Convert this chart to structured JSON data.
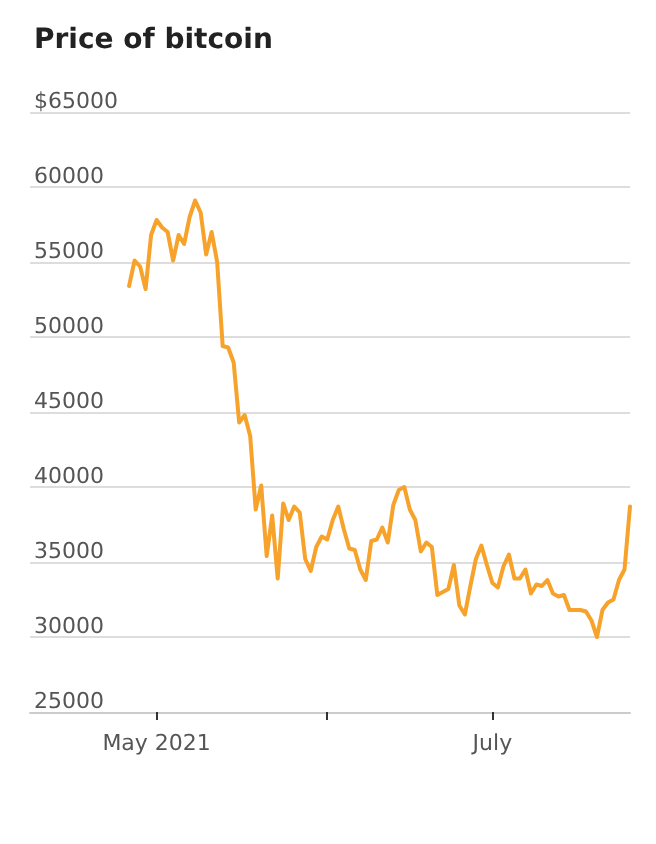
{
  "chart_data": {
    "type": "line",
    "title": "Price of bitcoin",
    "x": [
      "2021-04-26",
      "2021-04-27",
      "2021-04-28",
      "2021-04-29",
      "2021-04-30",
      "2021-05-01",
      "2021-05-02",
      "2021-05-03",
      "2021-05-04",
      "2021-05-05",
      "2021-05-06",
      "2021-05-07",
      "2021-05-08",
      "2021-05-09",
      "2021-05-10",
      "2021-05-11",
      "2021-05-12",
      "2021-05-13",
      "2021-05-14",
      "2021-05-15",
      "2021-05-16",
      "2021-05-17",
      "2021-05-18",
      "2021-05-19",
      "2021-05-20",
      "2021-05-21",
      "2021-05-22",
      "2021-05-23",
      "2021-05-24",
      "2021-05-25",
      "2021-05-26",
      "2021-05-27",
      "2021-05-28",
      "2021-05-29",
      "2021-05-30",
      "2021-05-31",
      "2021-06-01",
      "2021-06-02",
      "2021-06-03",
      "2021-06-04",
      "2021-06-05",
      "2021-06-06",
      "2021-06-07",
      "2021-06-08",
      "2021-06-09",
      "2021-06-10",
      "2021-06-11",
      "2021-06-12",
      "2021-06-13",
      "2021-06-14",
      "2021-06-15",
      "2021-06-16",
      "2021-06-17",
      "2021-06-18",
      "2021-06-19",
      "2021-06-20",
      "2021-06-21",
      "2021-06-22",
      "2021-06-23",
      "2021-06-24",
      "2021-06-25",
      "2021-06-26",
      "2021-06-27",
      "2021-06-28",
      "2021-06-29",
      "2021-06-30",
      "2021-07-01",
      "2021-07-02",
      "2021-07-03",
      "2021-07-04",
      "2021-07-05",
      "2021-07-06",
      "2021-07-07",
      "2021-07-08",
      "2021-07-09",
      "2021-07-10",
      "2021-07-11",
      "2021-07-12",
      "2021-07-13",
      "2021-07-14",
      "2021-07-15",
      "2021-07-16",
      "2021-07-17",
      "2021-07-18",
      "2021-07-19",
      "2021-07-20",
      "2021-07-21",
      "2021-07-22",
      "2021-07-23",
      "2021-07-24",
      "2021-07-25",
      "2021-07-26"
    ],
    "series": [
      {
        "color": "#f7a22a",
        "values": [
          53400,
          55100,
          54700,
          53200,
          56800,
          57800,
          57300,
          57000,
          55100,
          56800,
          56200,
          58000,
          59100,
          58300,
          55500,
          57000,
          55000,
          49400,
          49300,
          48300,
          44300,
          44800,
          43400,
          38500,
          40100,
          35400,
          38100,
          33900,
          38900,
          37800,
          38700,
          38300,
          35200,
          34400,
          36000,
          36700,
          36500,
          37800,
          38700,
          37200,
          35900,
          35800,
          34500,
          33800,
          36400,
          36500,
          37300,
          36300,
          38800,
          39800,
          40000,
          38500,
          37800,
          35700,
          36300,
          36000,
          32800,
          33000,
          33200,
          34800,
          32100,
          31500,
          33400,
          35200,
          36100,
          34800,
          33600,
          33300,
          34700,
          35500,
          33900,
          33900,
          34500,
          32900,
          33500,
          33400,
          33800,
          32900,
          32700,
          32800,
          31800,
          31800,
          31800,
          31700,
          31100,
          30000,
          31800,
          32300,
          32500,
          33800,
          34500,
          38700
        ]
      }
    ],
    "xlim": [
      "2021-04-08",
      "2021-07-26"
    ],
    "xticks": [
      {
        "value": "2021-05-01",
        "label": "May 2021"
      },
      {
        "value": "2021-06-01",
        "label": null
      },
      {
        "value": "2021-07-01",
        "label": "July"
      }
    ],
    "ylim": [
      25000,
      65000
    ],
    "yticks": [
      25000,
      30000,
      35000,
      40000,
      45000,
      50000,
      55000,
      {
        "value": 60000,
        "label": "60000"
      },
      {
        "value": 65000,
        "label": "$65000"
      }
    ],
    "grid": "y",
    "marker": "none",
    "line_style": "solid"
  }
}
